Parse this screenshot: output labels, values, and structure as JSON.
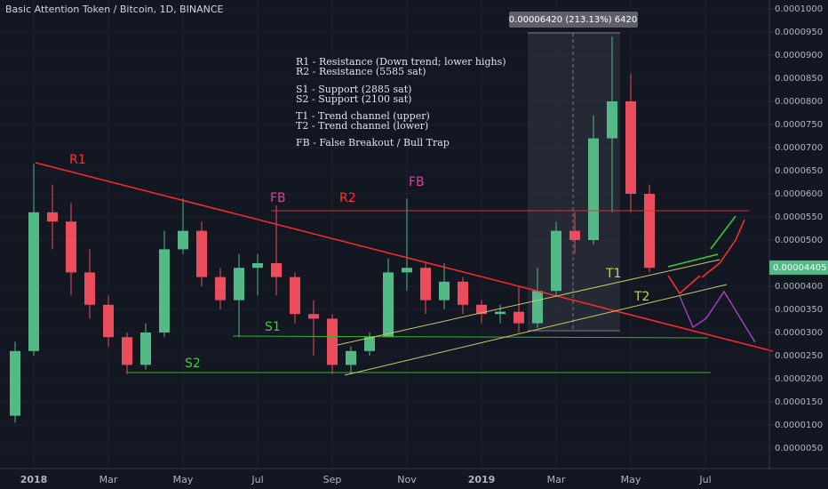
{
  "chart_data": {
    "type": "candlestick",
    "title": "Basic Attention Token / Bitcoin, 1D, BINANCE",
    "categories": [
      null,
      "2018",
      null,
      null,
      null,
      "Mar",
      null,
      null,
      null,
      "May",
      null,
      null,
      null,
      "Jul",
      null,
      null,
      null,
      "Sep",
      null,
      null,
      null,
      "Nov",
      null,
      null,
      null,
      "2019",
      null,
      null,
      null,
      "Mar",
      null,
      null,
      null,
      "May",
      null,
      null,
      null,
      "Jul"
    ],
    "open": [
      1.2e-05,
      2.6e-05,
      5.6e-05,
      5.4e-05,
      4.3e-05,
      3.6e-05,
      2.9e-05,
      2.3e-05,
      3e-05,
      4.8e-05,
      5.2e-05,
      4.2e-05,
      3.7e-05,
      4.4e-05,
      4.5e-05,
      4.2e-05,
      3.4e-05,
      3.3e-05,
      2.3e-05,
      2.6e-05,
      2.9e-05,
      4.3e-05,
      4.4e-05,
      3.7e-05,
      4.1e-05,
      3.6e-05,
      3.4e-05,
      3.45e-05,
      3.2e-05,
      3.9e-05,
      5.2e-05,
      5e-05,
      7.2e-05,
      8e-05,
      6e-05,
      null,
      null,
      null
    ],
    "high": [
      2.8e-05,
      6.65e-05,
      6.2e-05,
      5.8e-05,
      4.8e-05,
      3.8e-05,
      3e-05,
      3.2e-05,
      5.2e-05,
      5.9e-05,
      5.4e-05,
      4.4e-05,
      4.7e-05,
      4.7e-05,
      5.75e-05,
      4.3e-05,
      3.7e-05,
      3.4e-05,
      2.7e-05,
      3e-05,
      4.6e-05,
      5.9e-05,
      4.5e-05,
      4.5e-05,
      4.2e-05,
      3.7e-05,
      3.6e-05,
      4e-05,
      4.4e-05,
      5.4e-05,
      5.6e-05,
      7.7e-05,
      9.4e-05,
      8.6e-05,
      6.2e-05,
      null,
      null,
      null
    ],
    "low": [
      1.05e-05,
      2.5e-05,
      4.8e-05,
      3.8e-05,
      3.3e-05,
      2.7e-05,
      2.1e-05,
      2.2e-05,
      2.9e-05,
      4.7e-05,
      4e-05,
      3.5e-05,
      2.9e-05,
      3.8e-05,
      3.8e-05,
      3.2e-05,
      2.5e-05,
      2.1e-05,
      2.1e-05,
      2.5e-05,
      2.9e-05,
      3.9e-05,
      3.4e-05,
      3.5e-05,
      3.4e-05,
      3.2e-05,
      3.2e-05,
      3e-05,
      3.1e-05,
      3.8e-05,
      4.7e-05,
      4.9e-05,
      5.6e-05,
      5.6e-05,
      4.3e-05,
      null,
      null,
      null
    ],
    "close": [
      2.6e-05,
      5.6e-05,
      5.4e-05,
      4.3e-05,
      3.6e-05,
      2.9e-05,
      2.3e-05,
      3e-05,
      4.8e-05,
      5.2e-05,
      4.2e-05,
      3.7e-05,
      4.4e-05,
      4.5e-05,
      4.2e-05,
      3.4e-05,
      3.3e-05,
      2.3e-05,
      2.6e-05,
      2.9e-05,
      4.3e-05,
      4.4e-05,
      3.7e-05,
      4.1e-05,
      3.6e-05,
      3.4e-05,
      3.45e-05,
      3.2e-05,
      3.9e-05,
      5.2e-05,
      5e-05,
      7.2e-05,
      8e-05,
      6e-05,
      4.4e-05,
      null,
      null,
      null
    ],
    "up_color": "#53b987",
    "down_color": "#eb4d5c",
    "ylim": [
      5.8e-07,
      0.00010192
    ],
    "yticks": [
      {
        "value": 0.0001,
        "label": "0.0001000"
      },
      {
        "value": 9.5e-05,
        "label": "0.0000950"
      },
      {
        "value": 9e-05,
        "label": "0.0000900"
      },
      {
        "value": 8.5e-05,
        "label": "0.0000850"
      },
      {
        "value": 8e-05,
        "label": "0.0000800"
      },
      {
        "value": 7.5e-05,
        "label": "0.0000750"
      },
      {
        "value": 7e-05,
        "label": "0.0000700"
      },
      {
        "value": 6.5e-05,
        "label": "0.0000650"
      },
      {
        "value": 6e-05,
        "label": "0.0000600"
      },
      {
        "value": 5.5e-05,
        "label": "0.0000550"
      },
      {
        "value": 5e-05,
        "label": "0.0000500"
      },
      {
        "value": 4e-05,
        "label": "0.0000400"
      },
      {
        "value": 3.5e-05,
        "label": "0.0000350"
      },
      {
        "value": 3e-05,
        "label": "0.0000300"
      },
      {
        "value": 2.5e-05,
        "label": "0.0000250"
      },
      {
        "value": 2e-05,
        "label": "0.0000200"
      },
      {
        "value": 1.5e-05,
        "label": "0.0000150"
      },
      {
        "value": 1e-05,
        "label": "0.0000100"
      },
      {
        "value": 5e-06,
        "label": "0.0000050"
      }
    ],
    "last_price": 4.405e-05,
    "measure_label": "0.00006420 (213.13%) 6420",
    "notes": [
      "R1 - Resistance (Down trend; lower highs)",
      "R2 - Resistance (5585 sat)",
      "S1 - Support (2885 sat)",
      "S2 - Support (2100 sat)",
      "T1 - Trend channel (upper)",
      "T2 - Trend channel (lower)",
      "FB - False Breakout / Bull Trap"
    ],
    "level_labels": [
      "R1",
      "R2",
      "S1",
      "S2",
      "T1",
      "T2",
      "FB",
      "FB"
    ]
  }
}
